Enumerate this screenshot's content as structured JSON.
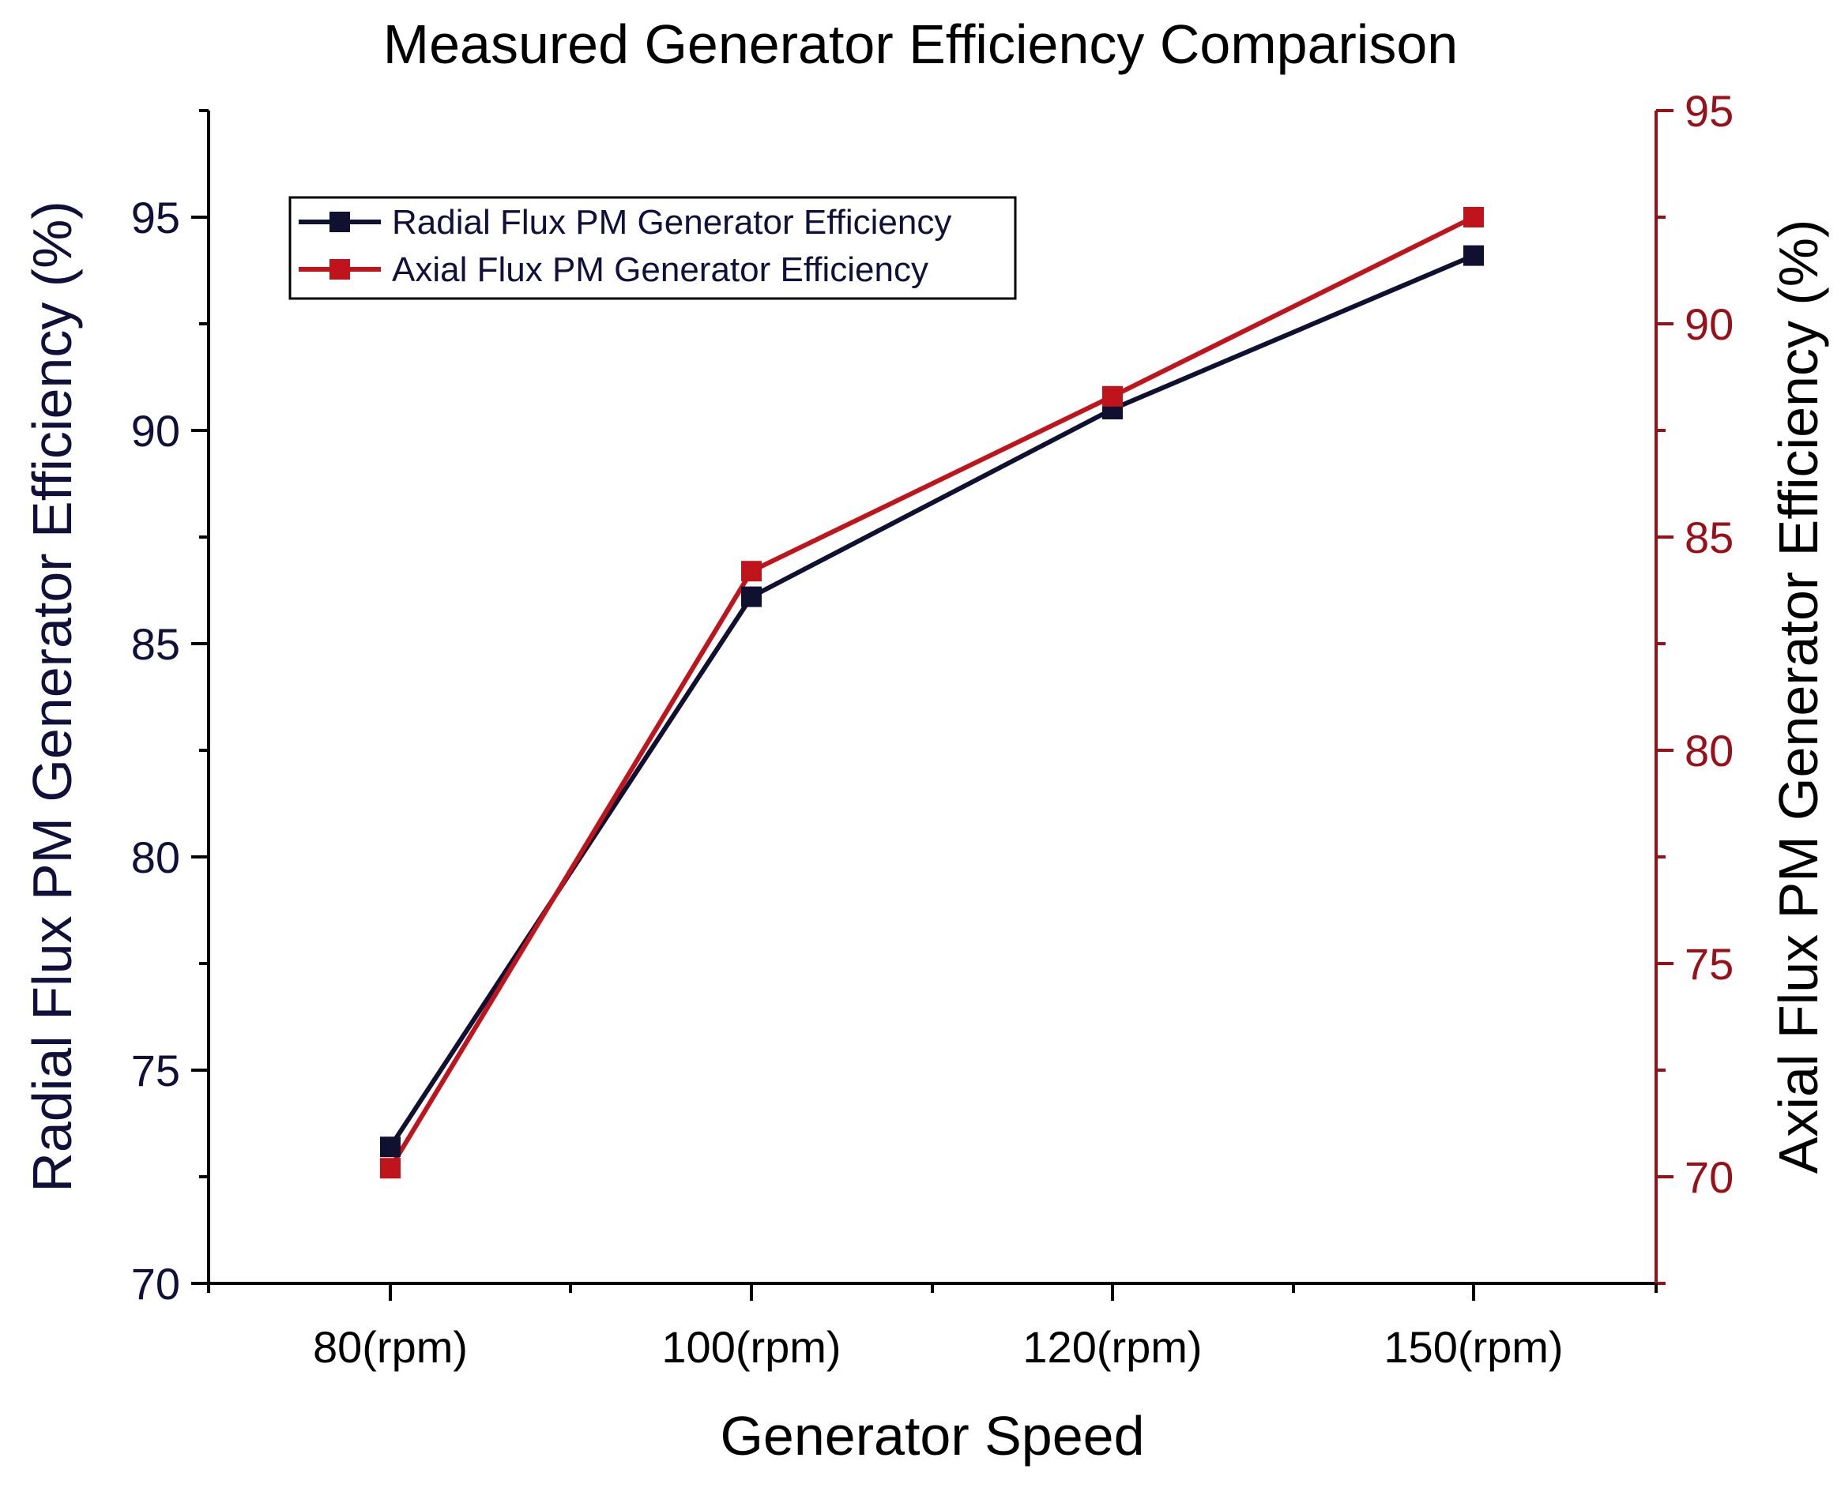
{
  "chart_data": {
    "type": "line",
    "title": "Measured Generator Efficiency Comparison",
    "xlabel": "Generator Speed",
    "ylabel_left": "Radial Flux PM Generator Efficiency (%)",
    "ylabel_right": "Axial Flux PM Generator Efficiency (%)",
    "categories": [
      "80(rpm)",
      "100(rpm)",
      "120(rpm)",
      "150(rpm)"
    ],
    "ylim_left": [
      70,
      97.5
    ],
    "ylim_right": [
      67.5,
      95
    ],
    "yticks_left": [
      "70",
      "75",
      "80",
      "85",
      "90",
      "95"
    ],
    "yticks_right": [
      "70",
      "75",
      "80",
      "85",
      "90",
      "95"
    ],
    "series": [
      {
        "name": "Radial Flux PM Generator Efficiency",
        "axis": "left",
        "color": "#101030",
        "values": [
          73.2,
          86.1,
          90.5,
          94.1
        ]
      },
      {
        "name": "Axial Flux PM Generator Efficiency",
        "axis": "right",
        "color": "#c0141c",
        "values": [
          70.2,
          84.2,
          88.3,
          92.5
        ]
      }
    ],
    "legend_position": "top-left",
    "grid": false
  },
  "colors": {
    "left_axis_text": "#10103a",
    "right_axis": "#9a1018",
    "axis_black": "#000000"
  }
}
